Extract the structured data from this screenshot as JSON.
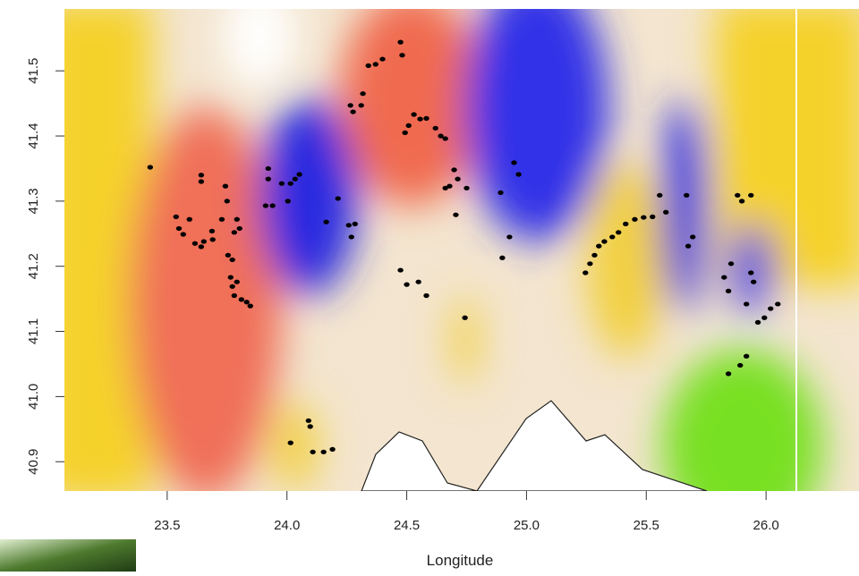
{
  "chart_data": {
    "type": "scatter",
    "x_label": "Longitude",
    "xlim": [
      23.071,
      26.388
    ],
    "ylim": [
      40.855,
      41.595
    ],
    "xticks": [
      23.5,
      {
        "value": 24,
        "label": "24.0"
      },
      24.5,
      {
        "value": 25,
        "label": "25.0"
      },
      25.5,
      {
        "value": 26,
        "label": "26.0"
      }
    ],
    "yticks": [
      40.9,
      {
        "value": 41,
        "label": "41.0"
      },
      41.1,
      41.2,
      41.3,
      41.4,
      41.5
    ],
    "series": [
      {
        "color": "#000000",
        "x": [
          23.429,
          23.537,
          23.549,
          23.567,
          23.593,
          23.616,
          23.642,
          23.653,
          23.642,
          23.642,
          23.687,
          23.69,
          23.728,
          23.743,
          23.75,
          23.754,
          23.772,
          23.78,
          23.791,
          23.802,
          23.765,
          23.772,
          23.78,
          23.791,
          23.81,
          23.832,
          23.847,
          23.922,
          23.922,
          23.911,
          23.94,
          23.978,
          24.004,
          24.015,
          24.034,
          24.052,
          24.164,
          24.213,
          24.258,
          24.269,
          24.284,
          24.265,
          24.276,
          24.31,
          24.317,
          24.34,
          24.37,
          24.399,
          24.474,
          24.481,
          24.493,
          24.508,
          24.53,
          24.556,
          24.582,
          24.62,
          24.642,
          24.661,
          24.661,
          24.679,
          24.698,
          24.713,
          24.75,
          24.705,
          24.743,
          24.474,
          24.5,
          24.549,
          24.582,
          24.09,
          24.097,
          24.015,
          24.108,
          24.153,
          24.19,
          24.892,
          24.899,
          24.929,
          24.948,
          24.967,
          25.246,
          25.265,
          25.284,
          25.302,
          25.325,
          25.358,
          25.384,
          25.414,
          25.452,
          25.489,
          25.526,
          25.556,
          25.582,
          25.668,
          25.675,
          25.694,
          25.825,
          25.843,
          25.854,
          25.881,
          25.899,
          25.937,
          25.918,
          25.948,
          25.937,
          25.966,
          25.993,
          26.019,
          26.049,
          25.843,
          25.892,
          25.918
        ],
        "y": [
          41.352,
          41.276,
          41.258,
          41.249,
          41.272,
          41.235,
          41.23,
          41.238,
          41.34,
          41.33,
          41.254,
          41.241,
          41.272,
          41.323,
          41.3,
          41.217,
          41.21,
          41.252,
          41.272,
          41.258,
          41.183,
          41.169,
          41.155,
          41.176,
          41.149,
          41.145,
          41.139,
          41.35,
          41.334,
          41.293,
          41.293,
          41.327,
          41.3,
          41.327,
          41.334,
          41.341,
          41.268,
          41.304,
          41.263,
          41.245,
          41.265,
          41.447,
          41.437,
          41.447,
          41.465,
          41.508,
          41.51,
          41.518,
          41.544,
          41.524,
          41.405,
          41.416,
          41.433,
          41.426,
          41.427,
          41.412,
          41.4,
          41.396,
          41.32,
          41.323,
          41.348,
          41.334,
          41.32,
          41.279,
          41.121,
          41.194,
          41.172,
          41.176,
          41.155,
          40.963,
          40.954,
          40.929,
          40.915,
          40.915,
          40.919,
          41.313,
          41.213,
          41.245,
          41.359,
          41.341,
          41.19,
          41.204,
          41.217,
          41.231,
          41.238,
          41.245,
          41.252,
          41.265,
          41.272,
          41.275,
          41.276,
          41.309,
          41.283,
          41.309,
          41.231,
          41.245,
          41.183,
          41.162,
          41.204,
          41.309,
          41.3,
          41.309,
          41.142,
          41.176,
          41.19,
          41.114,
          41.121,
          41.135,
          41.142,
          41.035,
          41.048,
          41.062
        ]
      }
    ]
  }
}
